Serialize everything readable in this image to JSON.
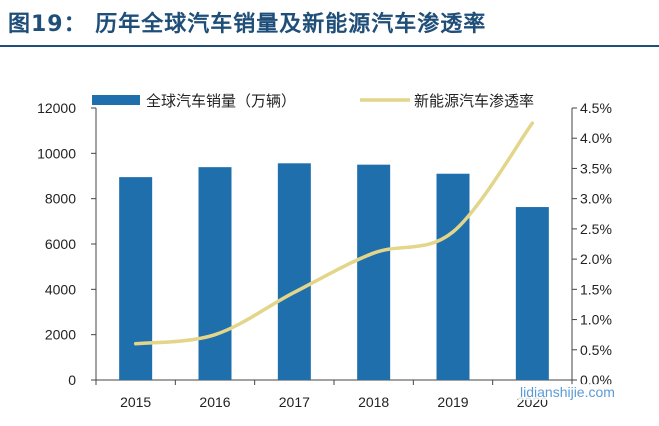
{
  "header": {
    "title": "图19：  历年全球汽车销量及新能源汽车渗透率"
  },
  "watermark": "lidianshijie.com",
  "colors": {
    "bar": "#1f6fad",
    "line": "#e3d58a",
    "title": "#1f4e79"
  },
  "chart_data": {
    "type": "bar",
    "categories": [
      "2015",
      "2016",
      "2017",
      "2018",
      "2019",
      "2020"
    ],
    "series": [
      {
        "name": "全球汽车销量（万辆）",
        "type": "bar",
        "axis": "left",
        "values": [
          8950,
          9390,
          9560,
          9500,
          9100,
          7630
        ]
      },
      {
        "name": "新能源汽车渗透率",
        "type": "line",
        "axis": "right",
        "values": [
          0.6,
          0.75,
          1.45,
          2.1,
          2.45,
          4.25
        ]
      }
    ],
    "left_axis": {
      "min": 0,
      "max": 12000,
      "ticks": [
        "0",
        "2000",
        "4000",
        "6000",
        "8000",
        "10000",
        "12000"
      ]
    },
    "right_axis": {
      "min": 0,
      "max": 4.5,
      "ticks": [
        "0.0%",
        "0.5%",
        "1.0%",
        "1.5%",
        "2.0%",
        "2.5%",
        "3.0%",
        "3.5%",
        "4.0%",
        "4.5%"
      ]
    },
    "legend_position": "top",
    "grid": false
  }
}
